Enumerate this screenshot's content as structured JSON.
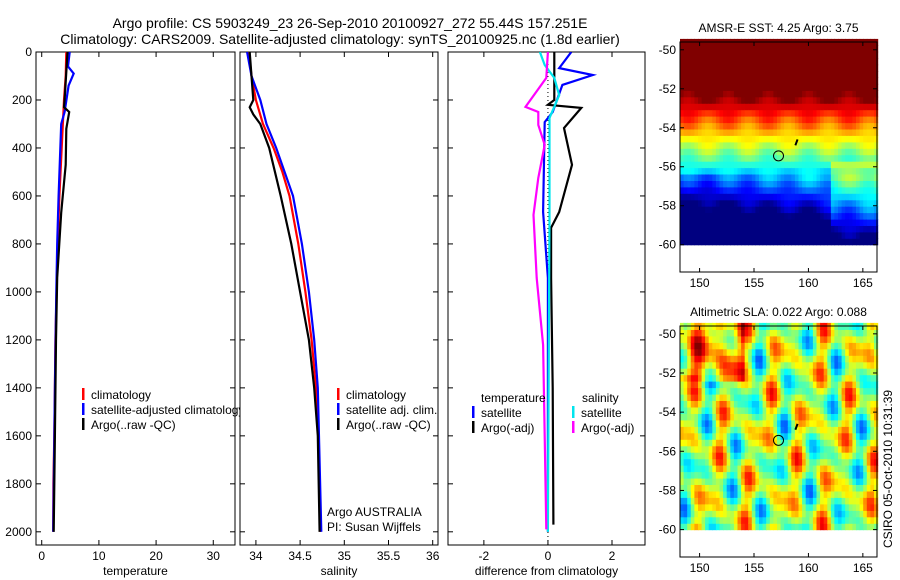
{
  "title_line1": "Argo profile: CS 5903249_23 26-Sep-2010 20100927_272 55.44S 157.251E",
  "title_line2": "Climatology: CARS2009. Satellite-adjusted climatology: synTS_20100925.nc (1.8d earlier)",
  "footer_vertical": "CSIRO 05-Oct-2010 10:31:39",
  "colors": {
    "climatology": "#ff0000",
    "satellite": "#0000ff",
    "argo": "#000000",
    "sal_satellite": "#00e5ee",
    "sal_argo": "#ff00ff"
  },
  "chart_data": [
    {
      "type": "line",
      "id": "temperature",
      "xlabel": "temperature",
      "xlim": [
        -1,
        33.8
      ],
      "ylim": [
        0,
        2055
      ],
      "xticks": [
        "0",
        "10",
        "20",
        "30"
      ],
      "yticks": [
        "0",
        "200",
        "400",
        "600",
        "800",
        "1000",
        "1200",
        "1400",
        "1600",
        "1800",
        "2000"
      ],
      "legend": [
        "climatology",
        "satellite-adjusted climatology",
        "Argo(..raw -QC)"
      ],
      "series": [
        {
          "name": "climatology",
          "color": "#ff0000",
          "depth": [
            0,
            100,
            200,
            400,
            600,
            800,
            1000,
            1200,
            1400,
            1600,
            1800,
            2000
          ],
          "value": [
            4.3,
            4.2,
            3.9,
            3.5,
            3.1,
            2.8,
            2.6,
            2.4,
            2.3,
            2.2,
            2.05,
            2.0
          ]
        },
        {
          "name": "satellite-adjusted climatology",
          "color": "#0000ff",
          "depth": [
            0,
            60,
            90,
            140,
            250,
            300,
            600,
            800,
            1000,
            1400,
            2000
          ],
          "value": [
            4.9,
            4.6,
            5.6,
            4.7,
            4.0,
            3.4,
            2.95,
            2.7,
            2.55,
            2.3,
            2.0
          ]
        },
        {
          "name": "Argo(..raw -QC)",
          "color": "#000000",
          "depth": [
            0,
            200,
            230,
            250,
            320,
            470,
            670,
            940,
            1200,
            1600,
            2000
          ],
          "value": [
            4.5,
            4.0,
            3.9,
            4.8,
            4.3,
            4.2,
            3.4,
            2.7,
            2.5,
            2.3,
            2.1
          ]
        }
      ]
    },
    {
      "type": "line",
      "id": "salinity",
      "xlabel": "salinity",
      "xlim": [
        33.82,
        36.06
      ],
      "ylim": [
        0,
        2055
      ],
      "xticks": [
        "34",
        "34.5",
        "35",
        "35.5",
        "36"
      ],
      "legend": [
        "climatology",
        "satellite adj. clim.",
        "Argo(..raw -QC)"
      ],
      "annotation": [
        "Argo AUSTRALIA",
        "PI: Susan Wijffels"
      ],
      "series": [
        {
          "name": "climatology",
          "color": "#ff0000",
          "depth": [
            0,
            100,
            200,
            300,
            400,
            500,
            600,
            800,
            1000,
            1200,
            1400,
            1600,
            2000
          ],
          "value": [
            33.92,
            33.95,
            34.0,
            34.08,
            34.2,
            34.3,
            34.38,
            34.48,
            34.56,
            34.63,
            34.68,
            34.71,
            34.73
          ]
        },
        {
          "name": "satellite adj. clim.",
          "color": "#0000ff",
          "depth": [
            0,
            100,
            200,
            300,
            400,
            600,
            800,
            1000,
            1200,
            1400,
            2000
          ],
          "value": [
            33.9,
            33.95,
            34.05,
            34.12,
            34.23,
            34.42,
            34.52,
            34.6,
            34.66,
            34.7,
            34.74
          ]
        },
        {
          "name": "Argo(..raw -QC)",
          "color": "#000000",
          "depth": [
            0,
            200,
            230,
            260,
            300,
            400,
            600,
            800,
            1000,
            1200,
            1400,
            1600,
            2000
          ],
          "value": [
            33.93,
            33.97,
            33.93,
            33.97,
            34.05,
            34.15,
            34.28,
            34.4,
            34.5,
            34.6,
            34.66,
            34.7,
            34.72
          ]
        }
      ]
    },
    {
      "type": "line",
      "id": "difference",
      "xlabel": "difference from climatology",
      "xlim": [
        -3.12,
        3.03
      ],
      "ylim": [
        0,
        2055
      ],
      "xticks": [
        "-2",
        "0",
        "2"
      ],
      "legend_titles": [
        "temperature",
        "salinity"
      ],
      "legend": [
        "satellite",
        "Argo(-adj)",
        "satellite",
        "Argo(-adj)"
      ],
      "series": [
        {
          "name": "temperature satellite",
          "color": "#0000ff",
          "depth": [
            0,
            67,
            96,
            137,
            250,
            292,
            667,
            942,
            1400,
            2000
          ],
          "value": [
            0.73,
            0.35,
            1.4,
            0.45,
            0.15,
            -0.1,
            -0.15,
            0,
            0,
            0
          ]
        },
        {
          "name": "temperature Argo(-adj)",
          "color": "#000000",
          "depth": [
            0,
            200,
            220,
            233,
            317,
            470,
            667,
            733,
            942,
            1400,
            1970
          ],
          "value": [
            0.2,
            0.2,
            0.0,
            1.04,
            0.5,
            0.75,
            0.35,
            0.1,
            0.1,
            0.15,
            0.17
          ]
        },
        {
          "name": "salinity satellite",
          "color": "#00e5ee",
          "depth": [
            0,
            54,
            108,
            180,
            275,
            700,
            1400,
            2000
          ],
          "value": [
            -0.25,
            -0.1,
            0.2,
            0.35,
            0.05,
            0.05,
            0.02,
            0.0
          ]
        },
        {
          "name": "salinity Argo(-adj)",
          "color": "#ff00ff",
          "depth": [
            0,
            108,
            229,
            250,
            304,
            387,
            525,
            679,
            942,
            1221,
            1600,
            1990
          ],
          "value": [
            0,
            -0.05,
            -0.7,
            -0.3,
            -0.3,
            -0.1,
            -0.3,
            -0.45,
            -0.35,
            -0.15,
            -0.1,
            -0.05
          ]
        }
      ]
    },
    {
      "type": "heatmap",
      "id": "sst-map",
      "title": "AMSR-E SST: 4.25 Argo: 3.75",
      "xlim": [
        148.2,
        166.3
      ],
      "ylim": [
        -61.4,
        -49.6
      ],
      "data_lat_min": -60,
      "xticks": [
        "150",
        "155",
        "160",
        "165"
      ],
      "yticks": [
        "-50",
        "-52",
        "-54",
        "-56",
        "-58",
        "-60"
      ],
      "argo_position": [
        157.251,
        -55.44
      ]
    },
    {
      "type": "heatmap",
      "id": "sla-map",
      "title": "Altimetric SLA: 0.022 Argo: 0.088",
      "xlim": [
        148.2,
        166.3
      ],
      "ylim": [
        -61.4,
        -49.6
      ],
      "data_lat_min": -60,
      "xticks": [
        "150",
        "155",
        "160",
        "165"
      ],
      "yticks": [
        "-50",
        "-52",
        "-54",
        "-56",
        "-58",
        "-60"
      ],
      "argo_position": [
        157.251,
        -55.44
      ]
    }
  ]
}
